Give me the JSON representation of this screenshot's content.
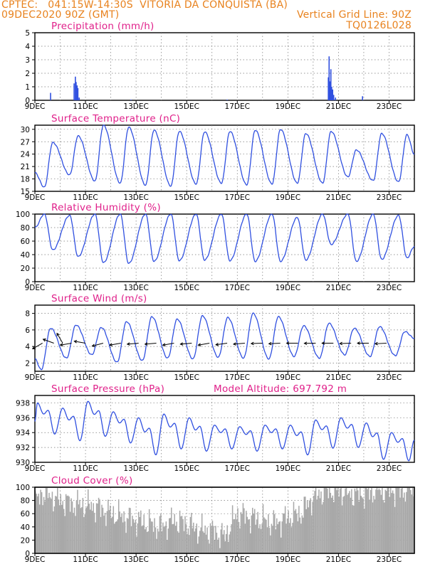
{
  "header": {
    "left_line1": "CPTEC:   041:15W-14:30S  VITORIA DA CONQUISTA (BA)",
    "left_line2": "09DEC2020 90Z (GMT)",
    "right_line1": "Vertical Grid Line: 90Z",
    "right_line2": "TQ0126L028"
  },
  "colors": {
    "header": "#e8821e",
    "title": "#e0208a",
    "series": "#3050e0",
    "cloud": "#a8a8a8",
    "axis": "#000000"
  },
  "chart_data": [
    {
      "type": "bar",
      "title": "Precipitation (mm/h)",
      "x_labels": [
        "9DEC",
        "11DEC",
        "13DEC",
        "15DEC",
        "17DEC",
        "19DEC",
        "21DEC",
        "23DEC"
      ],
      "x_range_days": [
        0,
        15
      ],
      "ylim": [
        0,
        5
      ],
      "yticks": [
        "0",
        "1",
        "2",
        "3",
        "4",
        "5"
      ],
      "bars": [
        [
          0.62,
          0.55
        ],
        [
          1.55,
          1.25
        ],
        [
          1.6,
          1.75
        ],
        [
          1.63,
          1.35
        ],
        [
          1.67,
          1.1
        ],
        [
          1.7,
          0.9
        ],
        [
          1.75,
          0.2
        ],
        [
          11.6,
          1.7
        ],
        [
          11.63,
          3.25
        ],
        [
          11.66,
          1.4
        ],
        [
          11.7,
          2.3
        ],
        [
          11.73,
          1.0
        ],
        [
          11.77,
          0.8
        ],
        [
          11.81,
          0.4
        ],
        [
          11.88,
          0.2
        ],
        [
          12.95,
          0.3
        ],
        [
          3.8,
          0.05
        ],
        [
          7.6,
          0.05
        ]
      ]
    },
    {
      "type": "line",
      "title": "Surface Temperature (nC)",
      "x_labels": [
        "9DEC",
        "11DEC",
        "13DEC",
        "15DEC",
        "17DEC",
        "19DEC",
        "21DEC",
        "23DEC"
      ],
      "ylim": [
        15,
        31
      ],
      "yticks": [
        "15",
        "18",
        "21",
        "24",
        "27",
        "30"
      ],
      "minima": [
        16.0,
        19.0,
        17.5,
        17.0,
        16.5,
        16.3,
        16.8,
        17.0,
        16.6,
        16.8,
        17.0,
        17.0,
        18.5,
        17.6,
        17.3
      ],
      "maxima": [
        26.8,
        28.4,
        31.0,
        30.5,
        29.8,
        29.5,
        29.4,
        29.5,
        29.8,
        30.0,
        29.0,
        29.5,
        25.0,
        29.0,
        28.7
      ],
      "min_hour": 9,
      "max_hour": 17,
      "start": 19.5,
      "end": 24.0
    },
    {
      "type": "line",
      "title": "Relative Humidity (%)",
      "x_labels": [
        "9DEC",
        "11DEC",
        "13DEC",
        "15DEC",
        "17DEC",
        "19DEC",
        "21DEC",
        "23DEC"
      ],
      "ylim": [
        0,
        100
      ],
      "yticks": [
        "0",
        "20",
        "40",
        "60",
        "80",
        "100"
      ],
      "maxima": [
        100,
        98,
        100,
        100,
        100,
        100,
        100,
        100,
        100,
        100,
        95,
        100,
        100,
        100,
        98
      ],
      "minima": [
        47,
        37,
        28,
        27,
        30,
        31,
        32,
        31,
        30,
        30,
        32,
        55,
        30,
        33,
        35
      ],
      "max_hour": 9,
      "min_hour": 17,
      "start": 80,
      "end": 52
    },
    {
      "type": "line",
      "title": "Surface Wind (m/s)",
      "x_labels": [
        "9DEC",
        "11DEC",
        "13DEC",
        "15DEC",
        "17DEC",
        "19DEC",
        "21DEC",
        "23DEC"
      ],
      "ylim": [
        1,
        9
      ],
      "yticks": [
        "2",
        "4",
        "6",
        "8"
      ],
      "maxima": [
        6.2,
        6.6,
        6.3,
        7.0,
        7.6,
        7.3,
        7.7,
        7.5,
        8.0,
        7.6,
        6.5,
        6.8,
        6.2,
        6.4,
        5.8
      ],
      "minima": [
        1.2,
        2.6,
        3.0,
        2.1,
        2.3,
        2.6,
        2.5,
        2.7,
        2.6,
        2.5,
        2.8,
        2.6,
        3.0,
        2.8,
        2.9
      ],
      "min_hour": 6,
      "max_hour": 15,
      "start": 2.5,
      "end": 5.0,
      "vectors": [
        [
          0.3,
          210
        ],
        [
          0.75,
          160
        ],
        [
          1.1,
          120
        ],
        [
          1.45,
          190
        ],
        [
          2.0,
          170
        ],
        [
          2.7,
          195
        ],
        [
          3.4,
          190
        ],
        [
          4.1,
          185
        ],
        [
          4.8,
          185
        ],
        [
          5.5,
          190
        ],
        [
          6.2,
          185
        ],
        [
          6.9,
          190
        ],
        [
          7.6,
          188
        ],
        [
          8.3,
          185
        ],
        [
          9.0,
          182
        ],
        [
          9.7,
          183
        ],
        [
          10.4,
          180
        ],
        [
          11.1,
          181
        ],
        [
          11.8,
          180
        ],
        [
          12.5,
          182
        ],
        [
          13.2,
          180
        ],
        [
          13.9,
          183
        ]
      ]
    },
    {
      "type": "line",
      "title": "Surface Pressure (hPa)",
      "annotation": "Model Altitude: 697.792 m",
      "x_labels": [
        "9DEC",
        "11DEC",
        "13DEC",
        "15DEC",
        "17DEC",
        "19DEC",
        "21DEC",
        "23DEC"
      ],
      "ylim": [
        930,
        939
      ],
      "yticks": [
        "930",
        "932",
        "934",
        "936",
        "938"
      ],
      "max_values": [
        938.0,
        937.3,
        938.2,
        936.8,
        936.0,
        936.5,
        936.0,
        935.0,
        934.8,
        935.0,
        935.0,
        935.7,
        936.0,
        935.3,
        934.0
      ],
      "min_values": [
        933.8,
        932.9,
        933.5,
        932.6,
        931.0,
        931.8,
        931.5,
        931.8,
        931.5,
        931.8,
        931.0,
        931.9,
        932.0,
        930.4,
        930.2
      ],
      "start": 935.5,
      "end": 933.0
    },
    {
      "type": "bar",
      "title": "Cloud Cover (%)",
      "x_labels": [
        "9DEC",
        "11DEC",
        "13DEC",
        "15DEC",
        "17DEC",
        "19DEC",
        "21DEC",
        "23DEC"
      ],
      "ylim": [
        0,
        100
      ],
      "yticks": [
        "0",
        "20",
        "40",
        "60",
        "80",
        "100"
      ],
      "profile_days": [
        0,
        0.3,
        0.5,
        1.0,
        1.5,
        2.0,
        2.5,
        3.0,
        3.5,
        4.0,
        4.5,
        5.0,
        5.5,
        6.0,
        6.5,
        7.0,
        7.5,
        8.0,
        8.5,
        9.0,
        9.5,
        10.0,
        10.5,
        11.0,
        11.5,
        12.0,
        12.5,
        13.0,
        13.5,
        14.0,
        15.0
      ],
      "profile_values": [
        75,
        92,
        88,
        80,
        75,
        72,
        70,
        60,
        55,
        50,
        45,
        40,
        50,
        45,
        35,
        35,
        25,
        60,
        55,
        50,
        45,
        55,
        60,
        85,
        95,
        95,
        90,
        90,
        95,
        95,
        97
      ]
    }
  ]
}
